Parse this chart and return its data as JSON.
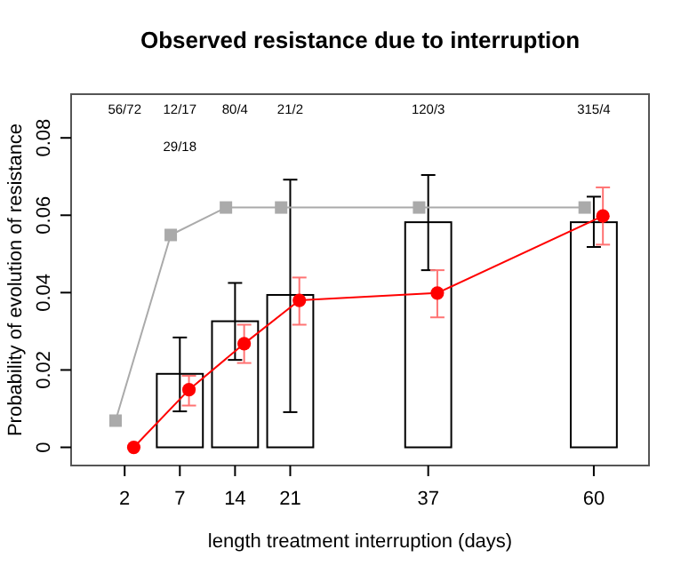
{
  "chart_data": {
    "type": "bar",
    "title": "Observed resistance due to interruption",
    "xlabel": "length treatment interruption (days)",
    "ylabel": "Probability of evolution of resistance",
    "categories": [
      "2",
      null,
      "7",
      null,
      "14",
      null,
      "21",
      null,
      null,
      null,
      null,
      "37",
      null,
      null,
      null,
      null,
      null,
      "60"
    ],
    "ylim": [
      -0.0047,
      0.0913
    ],
    "yticks": [
      0,
      0.02,
      0.04,
      0.06,
      0.08
    ],
    "series": [
      {
        "color": "#ffffff",
        "values": [
          0,
          null,
          0.019,
          null,
          0.0326,
          null,
          0.0394,
          null,
          null,
          null,
          null,
          0.0582,
          null,
          null,
          null,
          null,
          null,
          0.0582
        ],
        "errors": [
          null,
          null,
          [
            0.0093,
            0.0284
          ],
          null,
          [
            0.0226,
            0.0425
          ],
          null,
          [
            0.0091,
            0.0692
          ],
          null,
          null,
          null,
          null,
          [
            0.0458,
            0.0704
          ],
          null,
          null,
          null,
          null,
          null,
          [
            0.0518,
            0.0648
          ]
        ]
      },
      {
        "type": "line",
        "color": "#aaaaaa",
        "marker": "square",
        "values": [
          0.0069,
          null,
          0.0549,
          null,
          0.062,
          null,
          0.062,
          null,
          null,
          null,
          null,
          0.062,
          null,
          null,
          null,
          null,
          null,
          0.062
        ]
      },
      {
        "type": "line",
        "color": "#ff0000",
        "marker": "circle",
        "values": [
          0,
          null,
          0.0149,
          null,
          0.0268,
          null,
          0.038,
          null,
          null,
          null,
          null,
          0.0399,
          null,
          null,
          null,
          null,
          null,
          0.0598
        ],
        "errors": [
          null,
          null,
          [
            0.0108,
            0.0185
          ],
          null,
          [
            0.0218,
            0.0317
          ],
          null,
          [
            0.0317,
            0.0439
          ],
          null,
          null,
          null,
          null,
          [
            0.0336,
            0.0458
          ],
          null,
          null,
          null,
          null,
          null,
          [
            0.0524,
            0.0672
          ]
        ]
      }
    ],
    "annotations": [
      "56/72",
      "12/17",
      "29/18",
      "80/4",
      "21/2",
      "120/3",
      "315/4"
    ],
    "grid": false
  }
}
